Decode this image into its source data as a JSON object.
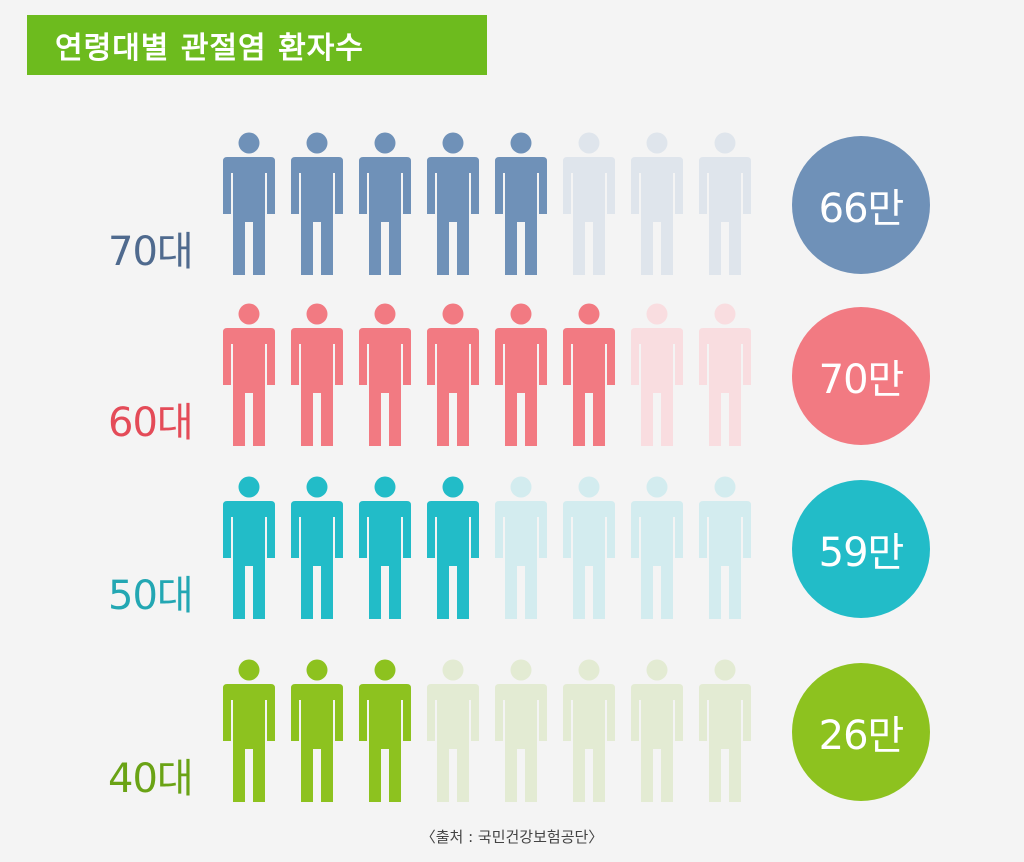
{
  "title": "연령대별 관절염 환자수",
  "source": "〈출처 : 국민건강보험공단〉",
  "chart_data": {
    "type": "pictogram",
    "title": "연령대별 관절염 환자수",
    "categories": [
      "70대",
      "60대",
      "50대",
      "40대"
    ],
    "values": [
      66,
      70,
      59,
      26
    ],
    "value_labels": [
      "66만",
      "70만",
      "59만",
      "26만"
    ],
    "icons_total": 8,
    "icons_filled": [
      5,
      6,
      4,
      3
    ],
    "colors": [
      "#6f91b8",
      "#f27a82",
      "#22bcc8",
      "#8dc21f"
    ],
    "label_colors": [
      "#4f6a8e",
      "#e44b58",
      "#23a7b3",
      "#6aa315"
    ],
    "faded_colors": [
      "#dfe5ec",
      "#f9dde0",
      "#d3ecef",
      "#e3ebd3"
    ]
  }
}
